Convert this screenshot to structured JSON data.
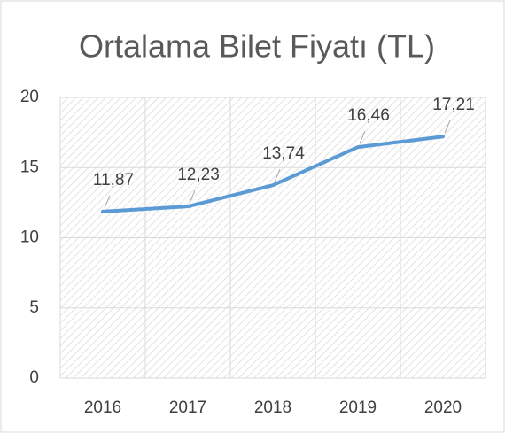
{
  "chart_data": {
    "type": "line",
    "title": "Ortalama Bilet Fiyatı (TL)",
    "categories": [
      "2016",
      "2017",
      "2018",
      "2019",
      "2020"
    ],
    "values": [
      11.87,
      12.23,
      13.74,
      16.46,
      17.21
    ],
    "value_labels": [
      "11,87",
      "12,23",
      "13,74",
      "16,46",
      "17,21"
    ],
    "color": "#5b9bd5",
    "ylim": [
      0,
      20
    ],
    "yticks": [
      0,
      5,
      10,
      15,
      20
    ],
    "grid": true
  }
}
